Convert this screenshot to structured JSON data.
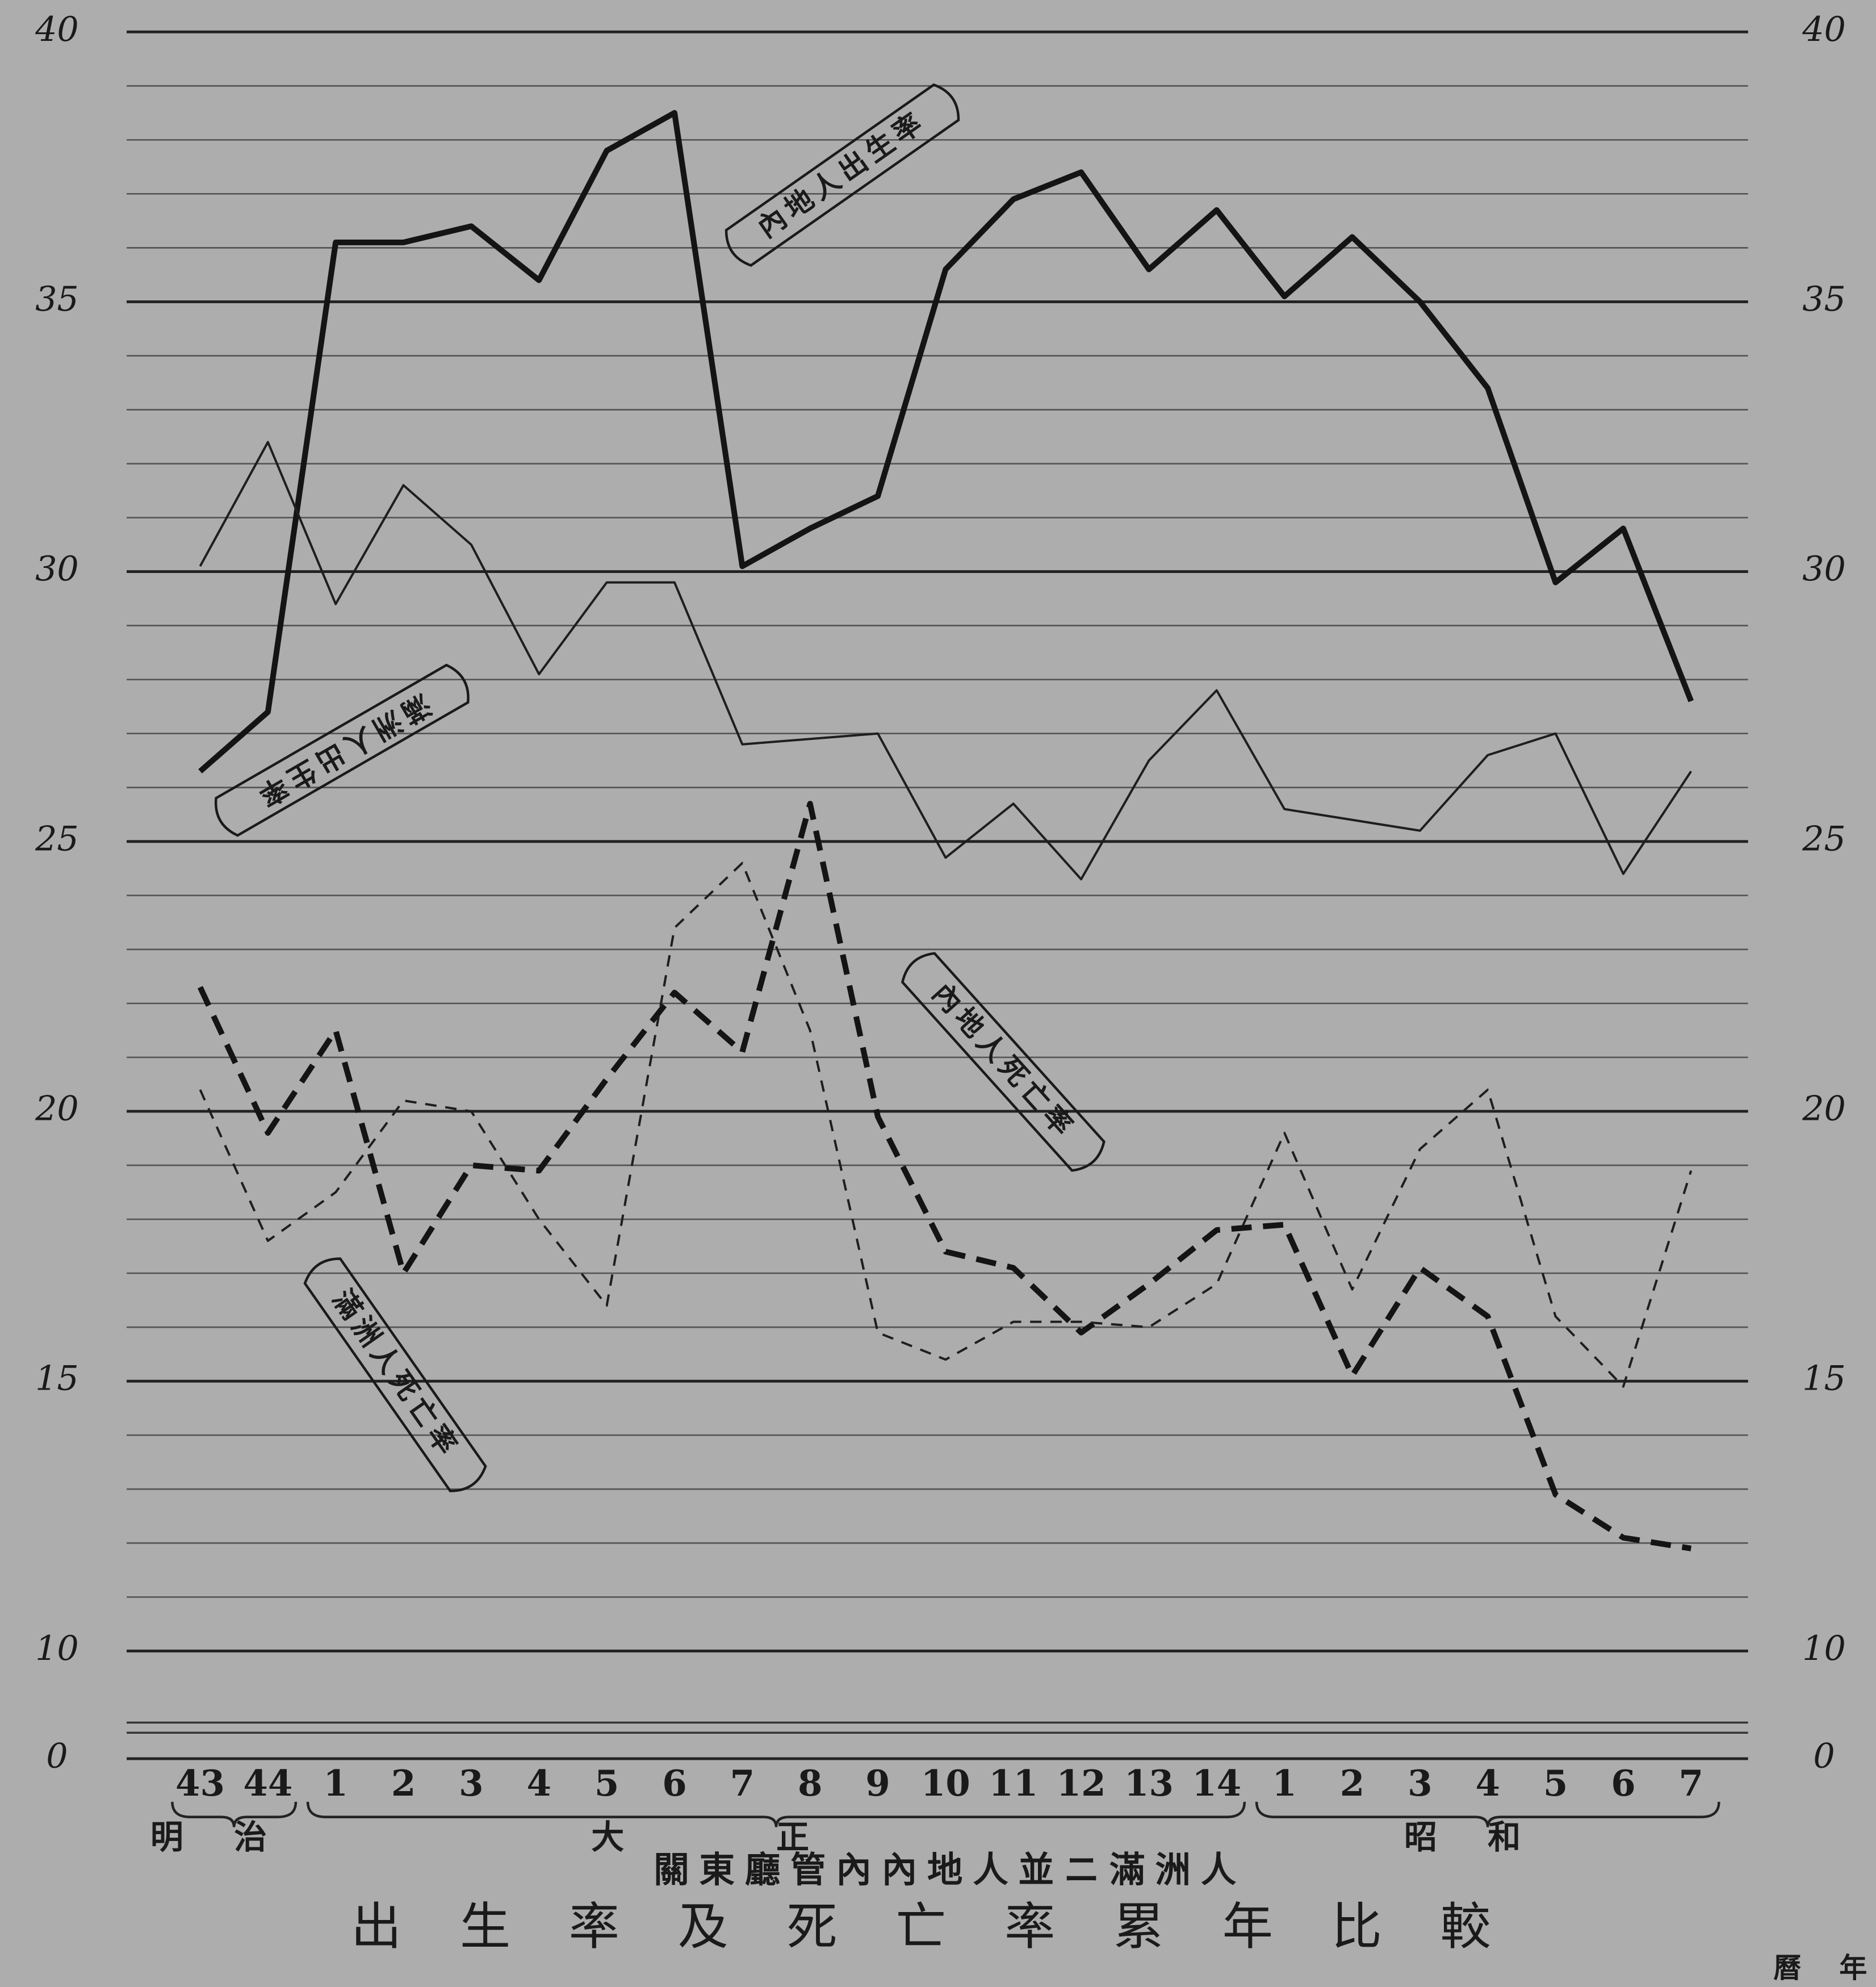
{
  "chart_data": {
    "type": "line",
    "title": "出生率及死亡率累年比較",
    "subtitle": "關東廳管內內地人並ニ滿洲人",
    "x_label": "曆年",
    "category_groups": [
      {
        "name": "明治",
        "categories": [
          "43",
          "44"
        ]
      },
      {
        "name": "大正",
        "categories": [
          "1",
          "2",
          "3",
          "4",
          "5",
          "6",
          "7",
          "8",
          "9",
          "10",
          "11",
          "12",
          "13",
          "14"
        ]
      },
      {
        "name": "昭和",
        "categories": [
          "1",
          "2",
          "3",
          "4",
          "5",
          "6",
          "7"
        ]
      }
    ],
    "series": [
      {
        "name": "內地人出生率",
        "color": "#141414",
        "style": "bold-solid",
        "values": [
          26.3,
          27.4,
          36.1,
          36.1,
          36.4,
          35.4,
          37.8,
          38.5,
          30.1,
          30.8,
          31.4,
          35.6,
          36.9,
          37.4,
          35.6,
          36.7,
          35.1,
          36.2,
          35.0,
          33.4,
          29.8,
          30.8,
          27.6
        ]
      },
      {
        "name": "滿洲人出生率",
        "color": "#1e1e1e",
        "style": "thin-solid",
        "values": [
          30.1,
          32.4,
          29.4,
          31.6,
          30.5,
          28.1,
          29.8,
          29.8,
          26.8,
          26.9,
          27.0,
          24.7,
          25.7,
          24.3,
          26.5,
          27.8,
          25.6,
          25.4,
          25.2,
          26.6,
          27.0,
          24.4,
          26.3
        ]
      },
      {
        "name": "內地人死亡率",
        "color": "#141414",
        "style": "bold-dashed",
        "values": [
          22.3,
          19.6,
          21.5,
          17.0,
          19.0,
          18.9,
          20.6,
          22.2,
          21.1,
          25.7,
          19.9,
          17.4,
          17.1,
          15.9,
          16.8,
          17.8,
          17.9,
          15.1,
          17.1,
          16.2,
          12.9,
          12.1,
          11.9
        ]
      },
      {
        "name": "滿洲人死亡率",
        "color": "#1e1e1e",
        "style": "thin-dashed",
        "values": [
          20.4,
          17.6,
          18.5,
          20.2,
          20.0,
          18.0,
          16.4,
          23.4,
          24.6,
          21.5,
          15.9,
          15.4,
          16.1,
          16.1,
          16.0,
          16.8,
          19.6,
          16.7,
          19.3,
          20.4,
          16.2,
          14.9,
          18.9
        ]
      }
    ],
    "ylim": [
      0,
      40
    ],
    "yticks": [
      0,
      10,
      15,
      20,
      25,
      30,
      35,
      40
    ],
    "axis_break": true,
    "minor_grid_step": 1,
    "grid": true,
    "background": "#adadad"
  }
}
